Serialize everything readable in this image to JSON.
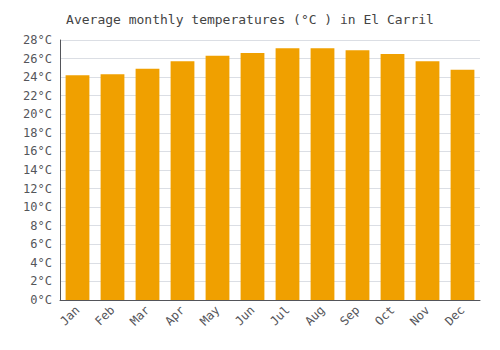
{
  "chart_data": {
    "type": "bar",
    "title": "Average monthly temperatures (°C ) in El Carril",
    "categories": [
      "Jan",
      "Feb",
      "Mar",
      "Apr",
      "May",
      "Jun",
      "Jul",
      "Aug",
      "Sep",
      "Oct",
      "Nov",
      "Dec"
    ],
    "values": [
      24.2,
      24.3,
      24.9,
      25.7,
      26.3,
      26.6,
      27.1,
      27.1,
      26.9,
      26.5,
      25.7,
      24.8
    ],
    "color": "#F0A000",
    "ylim": [
      0,
      28
    ],
    "yticks": [
      {
        "value": 0,
        "label": "0°C"
      },
      {
        "value": 2,
        "label": "2°C"
      },
      {
        "value": 4,
        "label": "4°C"
      },
      {
        "value": 6,
        "label": "6°C"
      },
      {
        "value": 8,
        "label": "8°C"
      },
      {
        "value": 10,
        "label": "10°C"
      },
      {
        "value": 12,
        "label": "12°C"
      },
      {
        "value": 14,
        "label": "14°C"
      },
      {
        "value": 16,
        "label": "16°C"
      },
      {
        "value": 18,
        "label": "18°C"
      },
      {
        "value": 20,
        "label": "20°C"
      },
      {
        "value": 22,
        "label": "22°C"
      },
      {
        "value": 24,
        "label": "24°C"
      },
      {
        "value": 26,
        "label": "26°C"
      },
      {
        "value": 28,
        "label": "28°C"
      }
    ],
    "grid": true
  }
}
